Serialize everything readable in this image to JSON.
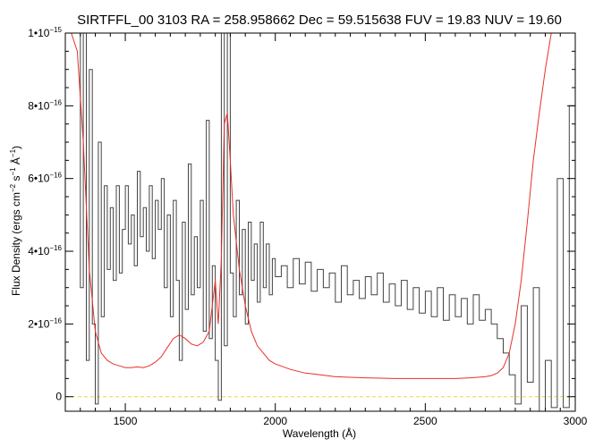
{
  "chart_data": {
    "type": "line",
    "title": "SIRTFFL_00 3103 RA = 258.958662 Dec =  59.515638 FUV = 19.83 NUV = 19.60",
    "xlabel": "Wavelength (Å)",
    "ylabel": {
      "prefix": "Flux Density (ergs cm",
      "exp1": "−2",
      "mid1": " s",
      "exp2": "−1",
      "mid2": " Å",
      "exp3": "−1",
      "suffix": ")"
    },
    "xlim": [
      1300,
      3000
    ],
    "ylim": [
      -4e-17,
      1e-15
    ],
    "x_ticks": [
      {
        "value": 1500,
        "label": "1500"
      },
      {
        "value": 2000,
        "label": "2000"
      },
      {
        "value": 2500,
        "label": "2500"
      },
      {
        "value": 3000,
        "label": "3000"
      }
    ],
    "y_ticks": [
      {
        "value": 0,
        "label": "0",
        "exp": ""
      },
      {
        "value": 2e-16,
        "label": "2•10",
        "exp": "−16"
      },
      {
        "value": 4e-16,
        "label": "4•10",
        "exp": "−16"
      },
      {
        "value": 6e-16,
        "label": "6•10",
        "exp": "−16"
      },
      {
        "value": 8e-16,
        "label": "8•10",
        "exp": "−16"
      },
      {
        "value": 1e-15,
        "label": "1•10",
        "exp": "−15"
      }
    ],
    "grid": false,
    "colors": {
      "flux": "#444444",
      "error": "#e8302a",
      "zero": "#e6dc3c",
      "axes": "#000000"
    },
    "series": [
      {
        "role": "flux",
        "style": "step",
        "x": [
          1340,
          1350,
          1360,
          1370,
          1380,
          1390,
          1400,
          1410,
          1420,
          1430,
          1440,
          1450,
          1460,
          1470,
          1480,
          1490,
          1500,
          1510,
          1520,
          1530,
          1540,
          1550,
          1560,
          1570,
          1580,
          1590,
          1600,
          1610,
          1620,
          1630,
          1640,
          1650,
          1660,
          1670,
          1680,
          1690,
          1700,
          1710,
          1720,
          1730,
          1740,
          1750,
          1760,
          1770,
          1780,
          1790,
          1800,
          1810,
          1820,
          1830,
          1840,
          1850,
          1860,
          1870,
          1880,
          1890,
          1900,
          1910,
          1920,
          1930,
          1940,
          1950,
          1960,
          1970,
          1980,
          1990,
          2000,
          2020,
          2040,
          2060,
          2080,
          2100,
          2120,
          2140,
          2160,
          2180,
          2200,
          2220,
          2240,
          2260,
          2280,
          2300,
          2320,
          2340,
          2360,
          2380,
          2400,
          2420,
          2440,
          2460,
          2480,
          2500,
          2520,
          2540,
          2560,
          2580,
          2600,
          2620,
          2640,
          2660,
          2680,
          2700,
          2720,
          2740,
          2760,
          2780,
          2800,
          2820,
          2840,
          2860,
          2880,
          2900,
          2920,
          2940,
          2960,
          2980,
          3000
        ],
        "y": [
          1e-15,
          3e-16,
          1e-15,
          1e-16,
          9e-16,
          2e-16,
          -2e-17,
          7e-16,
          2.2e-16,
          5.8e-16,
          3.5e-16,
          5.2e-16,
          3.2e-16,
          5.8e-16,
          3.4e-16,
          4.6e-16,
          5.8e-16,
          4.2e-16,
          5e-16,
          3.6e-16,
          6.2e-16,
          4.4e-16,
          5.2e-16,
          4e-16,
          5.8e-16,
          3.8e-16,
          5.4e-16,
          4.6e-16,
          6e-16,
          3e-16,
          5e-16,
          2.2e-16,
          5.4e-16,
          3.2e-16,
          1e-16,
          4.8e-16,
          2.4e-16,
          6.4e-16,
          2.8e-16,
          4.4e-16,
          3e-16,
          5.4e-16,
          1.8e-16,
          7.6e-16,
          1.6e-16,
          3.6e-16,
          1e-16,
          -1e-17,
          1e-15,
          1.4e-16,
          1e-15,
          3.4e-16,
          2.2e-16,
          5.4e-16,
          2.8e-16,
          4.6e-16,
          2e-16,
          4.8e-16,
          3.2e-16,
          4.2e-16,
          2.6e-16,
          4.8e-16,
          3e-16,
          4.2e-16,
          2.8e-16,
          3.8e-16,
          3.3e-16,
          3.6e-16,
          3e-16,
          3.8e-16,
          3.1e-16,
          3.7e-16,
          2.9e-16,
          3.5e-16,
          3e-16,
          3.4e-16,
          2.6e-16,
          3.6e-16,
          2.8e-16,
          3.2e-16,
          2.7e-16,
          3.3e-16,
          2.8e-16,
          3.4e-16,
          2.6e-16,
          3.1e-16,
          2.5e-16,
          3.2e-16,
          2.4e-16,
          3e-16,
          2.3e-16,
          2.9e-16,
          2.2e-16,
          3e-16,
          2.1e-16,
          2.8e-16,
          2.2e-16,
          2.7e-16,
          2e-16,
          2.8e-16,
          2.1e-16,
          2.4e-16,
          2e-16,
          1.6e-16,
          1.2e-16,
          6e-17,
          -2e-17,
          2.5e-16,
          4e-17,
          3e-16,
          -4e-17,
          1e-16,
          -3e-17,
          6e-16,
          -3e-17,
          8e-16,
          -1e-17
        ]
      },
      {
        "role": "error",
        "style": "line",
        "x": [
          1300,
          1320,
          1340,
          1360,
          1380,
          1400,
          1420,
          1440,
          1460,
          1480,
          1500,
          1520,
          1540,
          1560,
          1580,
          1600,
          1620,
          1640,
          1660,
          1680,
          1700,
          1720,
          1740,
          1760,
          1780,
          1800,
          1810,
          1820,
          1830,
          1840,
          1850,
          1860,
          1880,
          1900,
          1920,
          1940,
          1960,
          1980,
          2000,
          2050,
          2100,
          2150,
          2200,
          2300,
          2400,
          2500,
          2600,
          2650,
          2700,
          2720,
          2740,
          2760,
          2780,
          2800,
          2820,
          2840,
          2860,
          2880,
          2900,
          2920,
          2940,
          2960,
          2980,
          3000
        ],
        "y": [
          1e-15,
          1e-15,
          9.5e-16,
          7e-16,
          3.5e-16,
          1.8e-16,
          1.2e-16,
          1e-16,
          9e-17,
          8.5e-17,
          8e-17,
          8e-17,
          8.2e-17,
          8e-17,
          8.5e-17,
          9.5e-17,
          1.1e-16,
          1.35e-16,
          1.6e-16,
          1.7e-16,
          1.6e-16,
          1.45e-16,
          1.4e-16,
          1.5e-16,
          1.8e-16,
          3.2e-16,
          2e-16,
          3.8e-16,
          7.5e-16,
          7.8e-16,
          6.5e-16,
          5e-16,
          3.5e-16,
          2.5e-16,
          1.8e-16,
          1.4e-16,
          1.2e-16,
          1e-16,
          9e-17,
          7.5e-17,
          6.5e-17,
          6e-17,
          5.5e-17,
          5.2e-17,
          5e-17,
          5e-17,
          5e-17,
          5.2e-17,
          5.5e-17,
          5.8e-17,
          6.5e-17,
          8e-17,
          1.2e-16,
          2e-16,
          3.2e-16,
          4.8e-16,
          6.5e-16,
          7.8e-16,
          9e-16,
          1e-15,
          1e-15,
          1e-15,
          1e-15,
          1e-15
        ]
      }
    ]
  }
}
